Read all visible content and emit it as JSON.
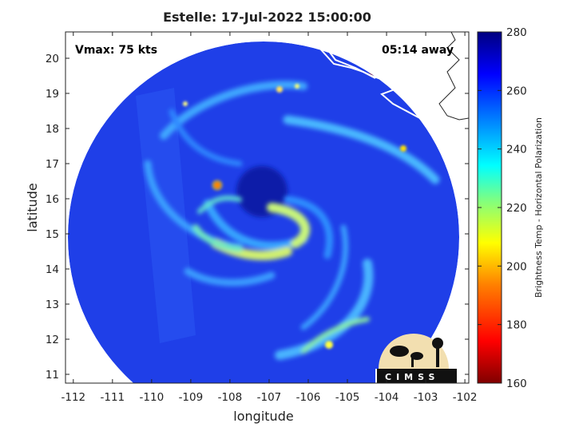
{
  "chart_data": {
    "type": "heatmap",
    "title": "Estelle: 17-Jul-2022 15:00:00",
    "xlabel": "longitude",
    "ylabel": "latitude",
    "xlim": [
      -112.2,
      -101.9
    ],
    "ylim": [
      10.75,
      20.75
    ],
    "x_ticks": [
      -112,
      -111,
      -110,
      -109,
      -108,
      -107,
      -106,
      -105,
      -104,
      -103,
      -102
    ],
    "y_ticks": [
      11,
      12,
      13,
      14,
      15,
      16,
      17,
      18,
      19,
      20
    ],
    "annotations": {
      "vmax": "Vmax: 75 kts",
      "away": "05:14 away"
    },
    "colorbar": {
      "label": "Brightness Temp - Horizontal Polarization",
      "min": 160,
      "max": 280,
      "ticks": [
        160,
        180,
        200,
        220,
        240,
        260,
        280
      ],
      "colors": [
        "#800000",
        "#ff0000",
        "#ff8000",
        "#ffff00",
        "#80ff80",
        "#00ffff",
        "#0080ff",
        "#0000ff",
        "#000080"
      ]
    },
    "swath": {
      "center_lon": -107.0,
      "center_lat": 15.55,
      "background_temp": 262
    },
    "storm_center": {
      "lon": -107.0,
      "lat": 16.0
    },
    "logo": "CIMSS"
  }
}
